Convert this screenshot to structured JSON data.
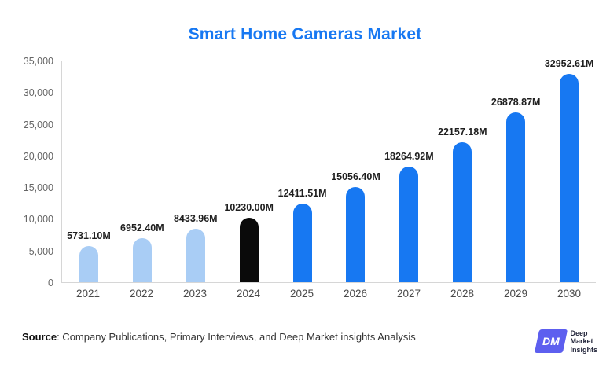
{
  "title": "Smart Home Cameras Market",
  "source": {
    "label": "Source",
    "text": ": Company Publications, Primary Interviews, and Deep Market insights Analysis"
  },
  "logo": {
    "monogram": "DM",
    "text_lines": [
      "Deep",
      "Market",
      "Insights"
    ]
  },
  "colors": {
    "title": "#1778f2",
    "bar_light": "#a9cdf5",
    "bar_dark": "#0a0a0a",
    "bar_blue": "#1778f2",
    "axis": "#d6d6d6",
    "value_label": "#1f1f1f"
  },
  "chart_data": {
    "type": "bar",
    "title": "Smart Home Cameras Market",
    "categories": [
      "2021",
      "2022",
      "2023",
      "2024",
      "2025",
      "2026",
      "2027",
      "2028",
      "2029",
      "2030"
    ],
    "values": [
      5731.1,
      6952.4,
      8433.96,
      10230.0,
      12411.51,
      15056.4,
      18264.92,
      22157.18,
      26878.87,
      32952.61
    ],
    "value_labels": [
      "5731.10M",
      "6952.40M",
      "8433.96M",
      "10230.00M",
      "12411.51M",
      "15056.40M",
      "18264.92M",
      "22157.18M",
      "26878.87M",
      "32952.61M"
    ],
    "bar_colors": [
      "light",
      "light",
      "light",
      "black",
      "blue",
      "blue",
      "blue",
      "blue",
      "blue",
      "blue"
    ],
    "xlabel": "",
    "ylabel": "",
    "ylim": [
      0,
      35000
    ],
    "yticks": [
      "0",
      "5,000",
      "10,000",
      "15,000",
      "20,000",
      "25,000",
      "30,000",
      "35,000"
    ],
    "grid": false,
    "legend": "none"
  }
}
